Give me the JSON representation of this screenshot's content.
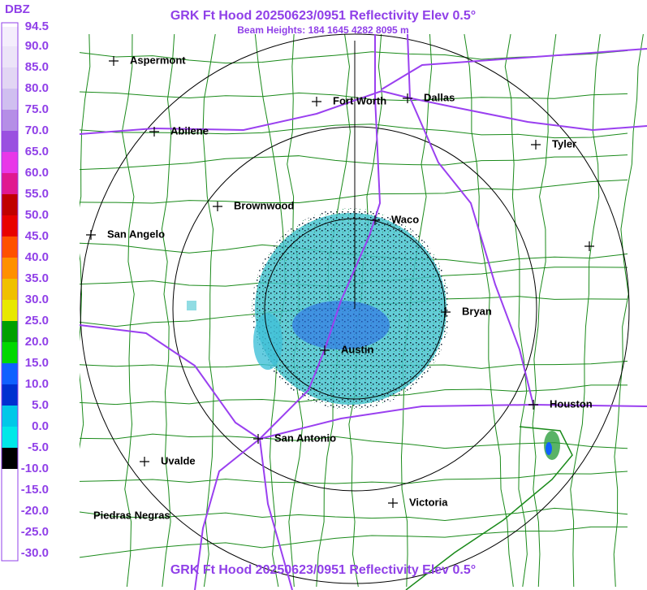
{
  "header": {
    "title": "GRK Ft Hood 20250623/0951 Reflectivity Elev 0.5°",
    "subtitle": "Beam Heights: 184 1645 4282 8095 m"
  },
  "footer": {
    "title": "GRK Ft Hood 20250623/0951 Reflectivity Elev 0.5°"
  },
  "legend": {
    "unit": "DBZ",
    "labels": [
      "94.5",
      "90.0",
      "85.0",
      "80.0",
      "75.0",
      "70.0",
      "65.0",
      "60.0",
      "55.0",
      "50.0",
      "45.0",
      "40.0",
      "35.0",
      "30.0",
      "25.0",
      "20.0",
      "15.0",
      "10.0",
      "5.0",
      "0.0",
      "-5.0",
      "-10.0",
      "-15.0",
      "-20.0",
      "-25.0",
      "-30.0"
    ],
    "colors": [
      "#f4eefc",
      "#ece4f8",
      "#e2d6f4",
      "#d0bff0",
      "#b58ee6",
      "#9a50e0",
      "#e838e8",
      "#e01890",
      "#c00000",
      "#e80000",
      "#ff5000",
      "#ff9000",
      "#f0c000",
      "#e8e800",
      "#00a000",
      "#00d800",
      "#1060ff",
      "#0030d0",
      "#00c8e8",
      "#00e8e8",
      "#000000",
      "#ffffff",
      "#ffffff",
      "#ffffff",
      "#ffffff"
    ]
  },
  "cities": [
    {
      "label": "Aspermont"
    },
    {
      "label": "Abilene"
    },
    {
      "label": "Fort Worth"
    },
    {
      "label": "Dallas"
    },
    {
      "label": "Tyler"
    },
    {
      "label": "Brownwood"
    },
    {
      "label": "San Angelo"
    },
    {
      "label": "Waco"
    },
    {
      "label": "Bryan"
    },
    {
      "label": "Austin"
    },
    {
      "label": "Houston"
    },
    {
      "label": "San Antonio"
    },
    {
      "label": "Uvalde"
    },
    {
      "label": "Victoria"
    },
    {
      "label": "Piedras Negras"
    }
  ]
}
